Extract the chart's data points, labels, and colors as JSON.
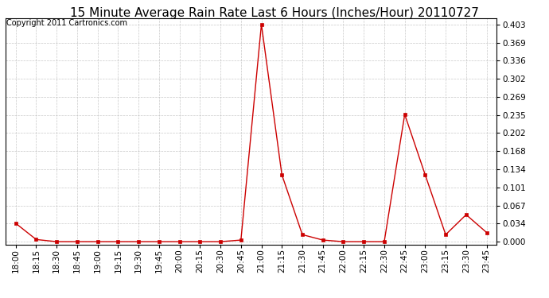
{
  "title": "15 Minute Average Rain Rate Last 6 Hours (Inches/Hour) 20110727",
  "copyright": "Copyright 2011 Cartronics.com",
  "x_labels": [
    "18:00",
    "18:15",
    "18:30",
    "18:45",
    "19:00",
    "19:15",
    "19:30",
    "19:45",
    "20:00",
    "20:15",
    "20:30",
    "20:45",
    "21:00",
    "21:15",
    "21:30",
    "21:45",
    "22:00",
    "22:15",
    "22:30",
    "22:45",
    "23:00",
    "23:15",
    "23:30",
    "23:45"
  ],
  "y_values": [
    0.034,
    0.004,
    0.0,
    0.0,
    0.0,
    0.0,
    0.0,
    0.0,
    0.0,
    0.0,
    0.0,
    0.003,
    0.403,
    0.124,
    0.013,
    0.003,
    0.0,
    0.0,
    0.0,
    0.236,
    0.124,
    0.013,
    0.05,
    0.017
  ],
  "yticks": [
    0.0,
    0.034,
    0.067,
    0.101,
    0.134,
    0.168,
    0.202,
    0.235,
    0.269,
    0.302,
    0.336,
    0.369,
    0.403
  ],
  "line_color": "#cc0000",
  "marker_color": "#cc0000",
  "bg_color": "#ffffff",
  "grid_color": "#bbbbbb",
  "title_fontsize": 11,
  "copyright_fontsize": 7,
  "tick_fontsize": 7.5
}
